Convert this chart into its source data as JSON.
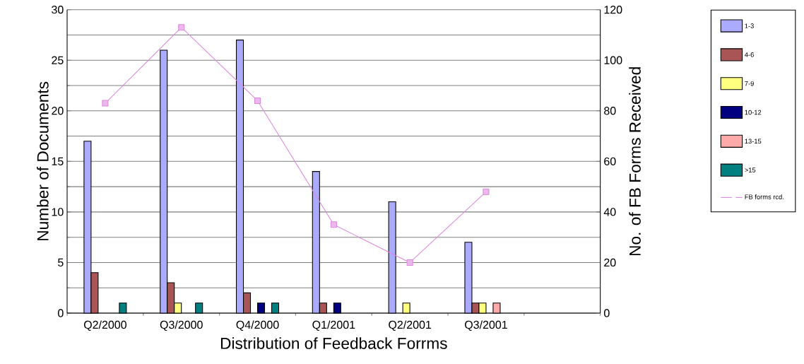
{
  "chart_data": {
    "type": "bar",
    "xlabel": "Distribution of Feedback Forrms",
    "ylabel": "Number of Documents",
    "y2label": "No. of FB Forms Received",
    "categories": [
      "Q2/2000",
      "Q3/2000",
      "Q4/2000",
      "Q1/2001",
      "Q2/2001",
      "Q3/2001",
      null
    ],
    "series": [
      {
        "name": "1-3",
        "color": "#aaaaff",
        "values": [
          17,
          26,
          27,
          14,
          11,
          7,
          null
        ]
      },
      {
        "name": "4-6",
        "color": "#aa5555",
        "values": [
          4,
          3,
          2,
          1,
          null,
          1,
          null
        ]
      },
      {
        "name": "7-9",
        "color": "#ffff80",
        "values": [
          null,
          1,
          null,
          null,
          1,
          1,
          null
        ]
      },
      {
        "name": "10-12",
        "color": "#000080",
        "values": [
          null,
          null,
          1,
          1,
          null,
          null,
          null
        ]
      },
      {
        "name": "13-15",
        "color": "#ffaaaa",
        "values": [
          null,
          null,
          null,
          null,
          null,
          1,
          null
        ]
      },
      {
        "name": ">15",
        "color": "#008080",
        "values": [
          1,
          1,
          1,
          null,
          null,
          null,
          null
        ]
      },
      {
        "name": "FB forms rcd.",
        "type": "line",
        "axis": "y2",
        "color": "#dd88dd",
        "marker": "square",
        "values": [
          83,
          113,
          84,
          35,
          20,
          48,
          null
        ]
      }
    ],
    "ylim": [
      0,
      30
    ],
    "yticks": [
      0,
      5,
      10,
      15,
      20,
      25,
      30
    ],
    "y2lim": [
      0,
      120
    ],
    "y2ticks": [
      0,
      20,
      40,
      60,
      80,
      100,
      120
    ],
    "grid": "y",
    "legend": "right"
  }
}
